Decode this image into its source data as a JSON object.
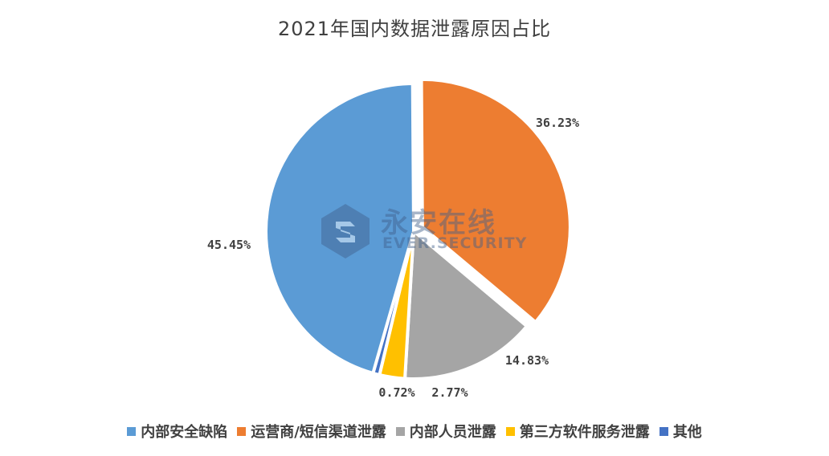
{
  "chart_data": {
    "type": "pie",
    "title": "2021年国内数据泄露原因占比",
    "categories": [
      "内部安全缺陷",
      "运营商/短信渠道泄露",
      "内部人员泄露",
      "第三方软件服务泄露",
      "其他"
    ],
    "values": [
      45.45,
      36.23,
      14.83,
      2.77,
      0.72
    ],
    "labels": [
      "45.45%",
      "36.23%",
      "14.83%",
      "2.77%",
      "0.72%"
    ],
    "colors": [
      "#5b9bd5",
      "#ed7d31",
      "#a5a5a5",
      "#ffc000",
      "#4472c4"
    ],
    "exploded": [
      false,
      true,
      false,
      false,
      false
    ],
    "legend_position": "bottom"
  },
  "watermark": {
    "name": "永安在线",
    "name_en": "EVER.SECURITY"
  }
}
